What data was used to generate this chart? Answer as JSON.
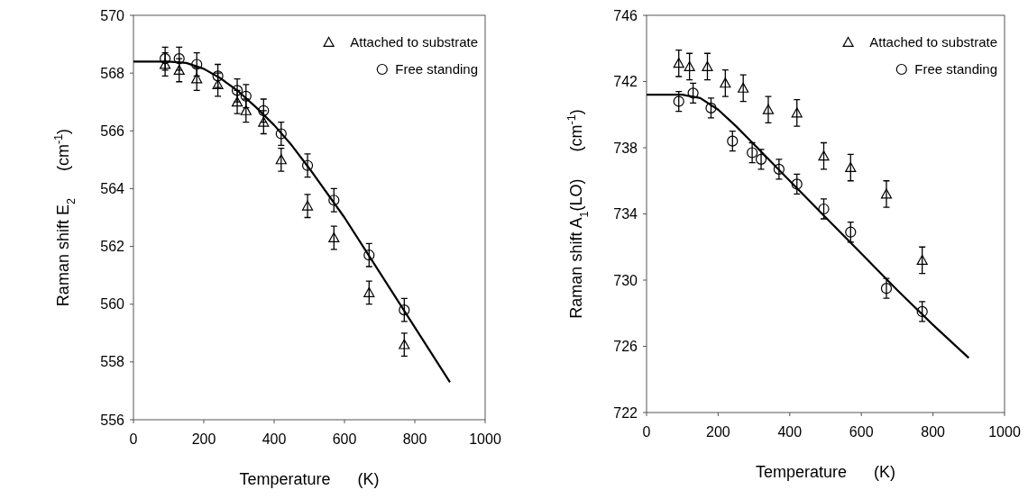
{
  "chart_data": [
    {
      "type": "scatter",
      "xlabel": "Temperature      (K)",
      "ylabel": "Raman shift E$_{2}$      (cm$^{-1}$)",
      "xlim": [
        0,
        1000
      ],
      "xticks": [
        0,
        200,
        400,
        600,
        800,
        1000
      ],
      "ylim": [
        556,
        570
      ],
      "yticks": [
        556,
        558,
        560,
        562,
        564,
        566,
        568,
        570
      ],
      "legend": "top right",
      "grid": false,
      "series": [
        {
          "name": "Attached to substrate",
          "type": "scatter",
          "marker": "triangle",
          "color": "#000000",
          "x": [
            90,
            130,
            180,
            240,
            295,
            320,
            370,
            420,
            495,
            570,
            670,
            770
          ],
          "values": [
            568.3,
            568.1,
            567.8,
            567.6,
            567.0,
            566.7,
            566.3,
            565.0,
            563.4,
            562.3,
            560.4,
            558.6
          ],
          "errors": [
            0.4,
            0.4,
            0.4,
            0.4,
            0.4,
            0.4,
            0.4,
            0.4,
            0.4,
            0.4,
            0.4,
            0.4
          ]
        },
        {
          "name": "Free standing",
          "type": "scatter",
          "marker": "circle",
          "color": "#000000",
          "x": [
            90,
            130,
            180,
            240,
            295,
            320,
            370,
            420,
            495,
            570,
            670,
            770
          ],
          "values": [
            568.5,
            568.5,
            568.3,
            567.9,
            567.4,
            567.2,
            566.7,
            565.9,
            564.8,
            563.6,
            561.7,
            559.8
          ],
          "errors": [
            0.4,
            0.4,
            0.4,
            0.4,
            0.4,
            0.4,
            0.4,
            0.4,
            0.4,
            0.4,
            0.4,
            0.4
          ]
        },
        {
          "type": "line",
          "marker": "none",
          "line_style": "solid",
          "color": "#000000",
          "x": [
            0,
            100,
            150,
            200,
            250,
            300,
            350,
            400,
            450,
            500,
            600,
            700,
            800,
            900
          ],
          "values": [
            568.4,
            568.4,
            568.35,
            568.15,
            567.8,
            567.35,
            566.8,
            566.2,
            565.5,
            564.7,
            563.0,
            561.1,
            559.2,
            557.3
          ]
        }
      ]
    },
    {
      "type": "scatter",
      "xlabel": "Temperature      (K)",
      "ylabel": "Raman shift A$_{1}$(LO)      (cm$^{-1}$)",
      "xlim": [
        0,
        1000
      ],
      "xticks": [
        0,
        200,
        400,
        600,
        800,
        1000
      ],
      "ylim": [
        722,
        746
      ],
      "yticks": [
        722,
        726,
        730,
        734,
        738,
        742,
        746
      ],
      "legend": "top right",
      "grid": false,
      "series": [
        {
          "name": "Attached to substrate",
          "type": "scatter",
          "marker": "triangle",
          "color": "#000000",
          "x": [
            90,
            120,
            170,
            220,
            270,
            340,
            420,
            495,
            570,
            670,
            770
          ],
          "values": [
            743.1,
            742.9,
            742.9,
            741.9,
            741.6,
            740.3,
            740.1,
            737.5,
            736.8,
            735.2,
            731.2
          ],
          "errors": [
            0.8,
            0.8,
            0.8,
            0.8,
            0.8,
            0.8,
            0.8,
            0.8,
            0.8,
            0.8,
            0.8
          ]
        },
        {
          "name": "Free standing",
          "type": "scatter",
          "marker": "circle",
          "color": "#000000",
          "x": [
            90,
            130,
            180,
            240,
            295,
            320,
            370,
            420,
            495,
            570,
            670,
            770
          ],
          "values": [
            740.8,
            741.3,
            740.4,
            738.4,
            737.7,
            737.3,
            736.7,
            735.8,
            734.3,
            732.9,
            729.5,
            728.1
          ],
          "errors": [
            0.6,
            0.6,
            0.6,
            0.6,
            0.6,
            0.6,
            0.6,
            0.6,
            0.6,
            0.6,
            0.6,
            0.6
          ]
        },
        {
          "type": "line",
          "marker": "none",
          "line_style": "solid",
          "color": "#000000",
          "x": [
            0,
            100,
            150,
            200,
            250,
            300,
            400,
            500,
            600,
            700,
            800,
            900
          ],
          "values": [
            741.2,
            741.2,
            741.0,
            740.3,
            739.3,
            738.2,
            736.0,
            733.8,
            731.6,
            729.4,
            727.3,
            725.3
          ]
        }
      ]
    }
  ]
}
